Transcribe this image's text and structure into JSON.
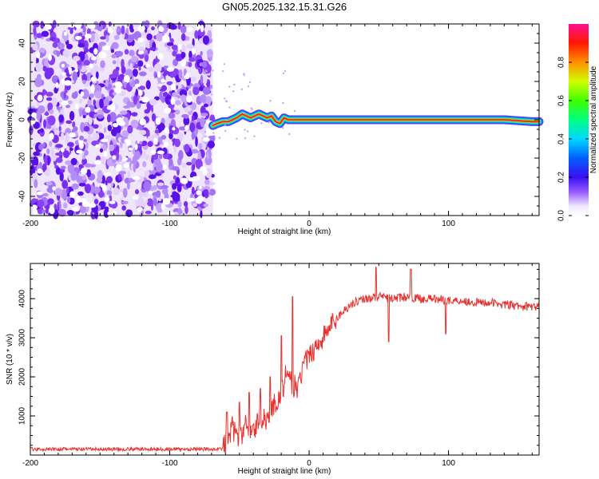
{
  "title": "GN05.2025.132.15.31.G26",
  "chart_data": [
    {
      "type": "heatmap",
      "name": "spectrogram",
      "xlabel": "Height of straight line (km)",
      "ylabel": "Frequency (Hz)",
      "xlim": [
        -200,
        165
      ],
      "ylim": [
        -50,
        50
      ],
      "xticks": [
        -200,
        -100,
        0,
        100
      ],
      "xtick_labels": [
        "-200",
        "-100",
        "0",
        "100"
      ],
      "yticks": [
        -40,
        -20,
        0,
        20,
        40
      ],
      "ytick_labels": [
        "-40",
        "-20",
        "0",
        "20",
        "40"
      ],
      "noise_region_x": [
        -200,
        -69
      ],
      "signal_track": {
        "x": [
          -69,
          -66,
          -62,
          -58,
          -55,
          -52,
          -48,
          -45,
          -42,
          -39,
          -36,
          -33,
          -30,
          -27,
          -24,
          -21,
          -18,
          -15,
          -10,
          0,
          20,
          50,
          80,
          110,
          140,
          160,
          165
        ],
        "freq": [
          -3,
          -2,
          -1,
          -1,
          0,
          1,
          3,
          2,
          1,
          2,
          3,
          2,
          1,
          2,
          -1,
          -2,
          1,
          0,
          0,
          0,
          0,
          0,
          0,
          0,
          0,
          -1,
          -1
        ]
      },
      "colorbar": {
        "label": "Normalized spectral amplitude",
        "range": [
          0,
          1
        ],
        "ticks": [
          0.0,
          0.2,
          0.4,
          0.6,
          0.8
        ],
        "tick_labels": [
          "0.0",
          "0.2",
          "0.4",
          "0.6",
          "0.8"
        ]
      }
    },
    {
      "type": "line",
      "name": "snr",
      "xlabel": "Height of straight line (km)",
      "ylabel": "SNR (10 * v/v)",
      "xlim": [
        -200,
        165
      ],
      "ylim": [
        0,
        4900
      ],
      "xticks": [
        -200,
        -100,
        0,
        100
      ],
      "xtick_labels": [
        "-200",
        "-100",
        "0",
        "100"
      ],
      "yticks": [
        1000,
        2000,
        3000,
        4000
      ],
      "ytick_labels": [
        "1000",
        "2000",
        "3000",
        "4000"
      ],
      "color": "#e8322f",
      "series": [
        {
          "name": "SNR",
          "x": [
            -200,
            -150,
            -100,
            -70,
            -62,
            -58,
            -55,
            -50,
            -45,
            -40,
            -35,
            -30,
            -25,
            -20,
            -17,
            -12,
            -8,
            -4,
            0,
            5,
            10,
            15,
            20,
            25,
            30,
            35,
            40,
            50,
            60,
            70,
            80,
            90,
            100,
            110,
            120,
            130,
            140,
            150,
            160,
            165
          ],
          "y": [
            150,
            150,
            150,
            150,
            160,
            500,
            700,
            400,
            800,
            600,
            1000,
            900,
            1300,
            1500,
            2000,
            1800,
            1700,
            2300,
            2500,
            2800,
            3000,
            3300,
            3500,
            3700,
            3850,
            3950,
            4000,
            4050,
            4000,
            4050,
            4000,
            4000,
            3950,
            3950,
            3900,
            3900,
            3850,
            3800,
            3800,
            3780
          ]
        }
      ],
      "spikes": [
        {
          "x": -59,
          "y": 1100
        },
        {
          "x": -50,
          "y": 1350
        },
        {
          "x": -43,
          "y": 1600
        },
        {
          "x": -35,
          "y": 1700
        },
        {
          "x": -28,
          "y": 2000
        },
        {
          "x": -12,
          "y": 4050
        },
        {
          "x": -20,
          "y": 3050
        },
        {
          "x": 48,
          "y": 4800
        },
        {
          "x": 73,
          "y": 4750
        },
        {
          "x": 57,
          "y": 2900
        },
        {
          "x": 98,
          "y": 3100
        }
      ]
    }
  ]
}
